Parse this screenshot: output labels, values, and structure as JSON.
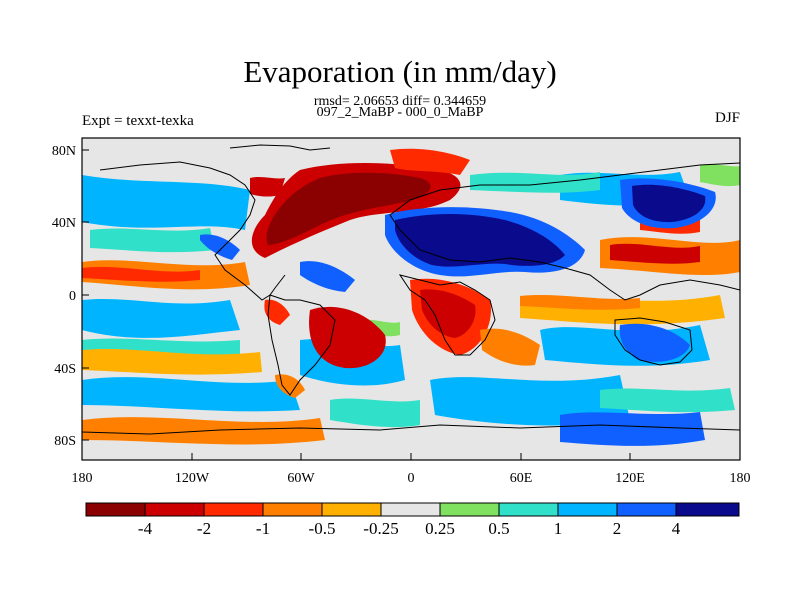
{
  "map": {
    "title": "Evaporation (in mm/day)",
    "stats_line": "rmsd= 2.06653 diff= 0.344659",
    "period_line": "097_2_MaBP - 000_0_MaBP",
    "left_label": "Expt = texxt-texka",
    "right_label": "DJF",
    "x_ticks": [
      "180",
      "120W",
      "60W",
      "0",
      "60E",
      "120E",
      "180"
    ],
    "y_ticks": [
      "80N",
      "40N",
      "0",
      "40S",
      "80S"
    ],
    "colorbar_labels": [
      "-4",
      "-2",
      "-1",
      "-0.5",
      "-0.25",
      "0.25",
      "0.5",
      "1",
      "2",
      "4"
    ],
    "colorbar_colors": [
      "#8b0000",
      "#cc0000",
      "#ff2a00",
      "#ff8000",
      "#ffb000",
      "#e6e6e6",
      "#80e060",
      "#30e0c8",
      "#00b4ff",
      "#1060ff",
      "#0a0a8c"
    ],
    "background_color": "#e6e6e6"
  }
}
